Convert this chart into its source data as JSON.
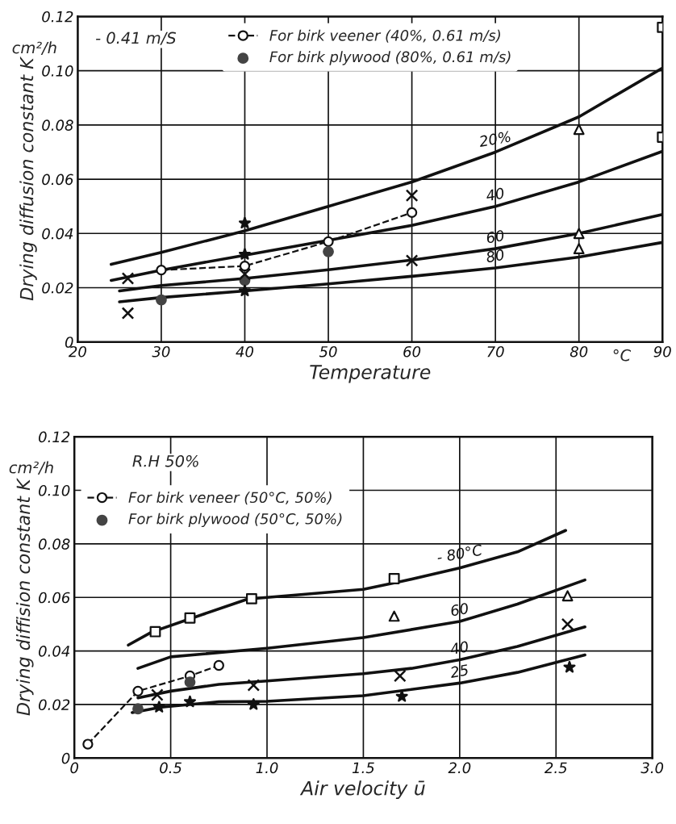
{
  "chart_data": [
    {
      "type": "line",
      "xlabel": "Temperature",
      "ylabel": "Drying diffusion constant K",
      "xlim": [
        20,
        90
      ],
      "ylim": [
        0,
        0.12
      ],
      "xticks": [
        20,
        30,
        40,
        50,
        60,
        70,
        80,
        90
      ],
      "yticks": [
        0,
        0.02,
        0.04,
        0.06,
        0.08,
        {
          "value": 0.1,
          "label": "0.10"
        },
        0.12
      ],
      "grid": true,
      "legend": "top",
      "annotations": [
        "- 0.41 m/S",
        "cm²/h",
        "°C"
      ],
      "series": [
        {
          "name": "20%",
          "color": "#111111",
          "marker": "none",
          "x": [
            24,
            30,
            40,
            50,
            60,
            70,
            80,
            90
          ],
          "values": [
            0.0286,
            0.033,
            0.041,
            0.05,
            0.059,
            0.07,
            0.083,
            0.101
          ]
        },
        {
          "name": "40",
          "color": "#111111",
          "marker": "none",
          "x": [
            24,
            30,
            40,
            50,
            60,
            70,
            80,
            90
          ],
          "values": [
            0.0227,
            0.0265,
            0.032,
            0.0375,
            0.043,
            0.05,
            0.059,
            0.0703
          ]
        },
        {
          "name": "60",
          "color": "#111111",
          "marker": "none",
          "x": [
            25,
            30,
            40,
            50,
            60,
            70,
            80,
            90
          ],
          "values": [
            0.0188,
            0.0208,
            0.0234,
            0.0266,
            0.0302,
            0.0344,
            0.04,
            0.047
          ]
        },
        {
          "name": "80",
          "color": "#111111",
          "marker": "none",
          "x": [
            25,
            30,
            40,
            50,
            60,
            70,
            80,
            90
          ],
          "values": [
            0.0148,
            0.0164,
            0.0188,
            0.0214,
            0.0242,
            0.0273,
            0.0313,
            0.0367
          ]
        },
        {
          "name": "For birk veener (40%, 0.61 m/s)",
          "line_style": "dashed",
          "color": "#111111",
          "marker": "circle",
          "x": [
            30,
            40,
            50,
            60
          ],
          "values": [
            0.0265,
            0.028,
            0.037,
            0.0477
          ]
        },
        {
          "name": "For birk plywood (80%, 0.61 m/s)",
          "type": "scatter",
          "color": "#444444",
          "marker": "circle",
          "x": [
            30,
            40,
            50
          ],
          "values": [
            0.0155,
            0.0227,
            0.0333
          ]
        },
        {
          "type": "scatter",
          "color": "#111111",
          "marker": "cross",
          "x": [
            26,
            26,
            40,
            60,
            60
          ],
          "values": [
            0.0234,
            0.0106,
            0.025,
            0.054,
            0.03
          ]
        },
        {
          "type": "scatter",
          "color": "#111111",
          "marker": "star",
          "x": [
            40,
            40,
            40
          ],
          "values": [
            0.0438,
            0.0323,
            0.0188
          ]
        },
        {
          "type": "scatter",
          "color": "#111111",
          "marker": "triangle",
          "x": [
            80,
            80,
            80
          ],
          "values": [
            0.0784,
            0.04,
            0.0344
          ]
        },
        {
          "type": "scatter",
          "color": "#111111",
          "marker": "square",
          "x": [
            90,
            90
          ],
          "values": [
            0.116,
            0.0755
          ]
        }
      ]
    },
    {
      "type": "line",
      "xlabel": "Air velocity ū",
      "ylabel": "Drying diffision constant K",
      "xlim": [
        0,
        3
      ],
      "ylim": [
        0,
        0.12
      ],
      "xticks": [
        0,
        0.5,
        {
          "value": 1,
          "label": "1.0"
        },
        1.5,
        {
          "value": 2,
          "label": "2.0"
        },
        2.5,
        {
          "value": 3,
          "label": "3.0"
        }
      ],
      "yticks": [
        0,
        0.02,
        0.04,
        0.06,
        0.08,
        {
          "value": 0.1,
          "label": "0.10"
        },
        0.12
      ],
      "grid": true,
      "legend": "top left",
      "annotations": [
        "R.H 50%",
        "cm²/h"
      ],
      "series": [
        {
          "name": "- 80°C",
          "color": "#111111",
          "marker": "none",
          "x": [
            0.28,
            0.4,
            0.6,
            0.9,
            1.0,
            1.5,
            1.7,
            2.0,
            2.3,
            2.55
          ],
          "values": [
            0.0422,
            0.047,
            0.052,
            0.0594,
            0.06,
            0.063,
            0.066,
            0.071,
            0.077,
            0.085
          ]
        },
        {
          "name": "60",
          "color": "#111111",
          "marker": "none",
          "x": [
            0.33,
            0.5,
            1.0,
            1.5,
            2.0,
            2.3,
            2.65
          ],
          "values": [
            0.0335,
            0.0378,
            0.041,
            0.045,
            0.051,
            0.0575,
            0.0665
          ]
        },
        {
          "name": "40",
          "color": "#111111",
          "marker": "none",
          "x": [
            0.33,
            0.5,
            0.75,
            1.0,
            1.5,
            1.75,
            2.0,
            2.3,
            2.65
          ],
          "values": [
            0.0225,
            0.025,
            0.0275,
            0.0288,
            0.0315,
            0.0335,
            0.0367,
            0.0417,
            0.049
          ]
        },
        {
          "name": "25",
          "color": "#111111",
          "marker": "none",
          "x": [
            0.3,
            0.45,
            0.75,
            1.0,
            1.5,
            2.0,
            2.3,
            2.65
          ],
          "values": [
            0.017,
            0.019,
            0.021,
            0.0212,
            0.0233,
            0.028,
            0.032,
            0.0385
          ]
        },
        {
          "name": "For birk veneer (50°C, 50%)",
          "line_style": "dashed",
          "color": "#111111",
          "marker": "circle",
          "x": [
            0.07,
            0.33,
            0.6,
            0.75
          ],
          "values": [
            0.0052,
            0.025,
            0.0307,
            0.0346
          ]
        },
        {
          "name": "For birk plywood (50°C, 50%)",
          "type": "scatter",
          "color": "#444444",
          "marker": "circle",
          "x": [
            0.33,
            0.6
          ],
          "values": [
            0.0184,
            0.0284
          ]
        },
        {
          "type": "scatter",
          "color": "#111111",
          "marker": "square",
          "x": [
            0.42,
            0.6,
            0.92,
            1.66
          ],
          "values": [
            0.0472,
            0.0523,
            0.0595,
            0.067
          ]
        },
        {
          "type": "scatter",
          "color": "#111111",
          "marker": "triangle",
          "x": [
            1.66,
            2.56
          ],
          "values": [
            0.053,
            0.0606
          ]
        },
        {
          "type": "scatter",
          "color": "#111111",
          "marker": "cross",
          "x": [
            0.43,
            0.93,
            1.69,
            2.56
          ],
          "values": [
            0.0236,
            0.0272,
            0.0307,
            0.05
          ]
        },
        {
          "type": "scatter",
          "color": "#111111",
          "marker": "star",
          "x": [
            0.44,
            0.6,
            0.93,
            1.7,
            2.57
          ],
          "values": [
            0.019,
            0.021,
            0.02,
            0.023,
            0.0339
          ]
        }
      ]
    }
  ]
}
